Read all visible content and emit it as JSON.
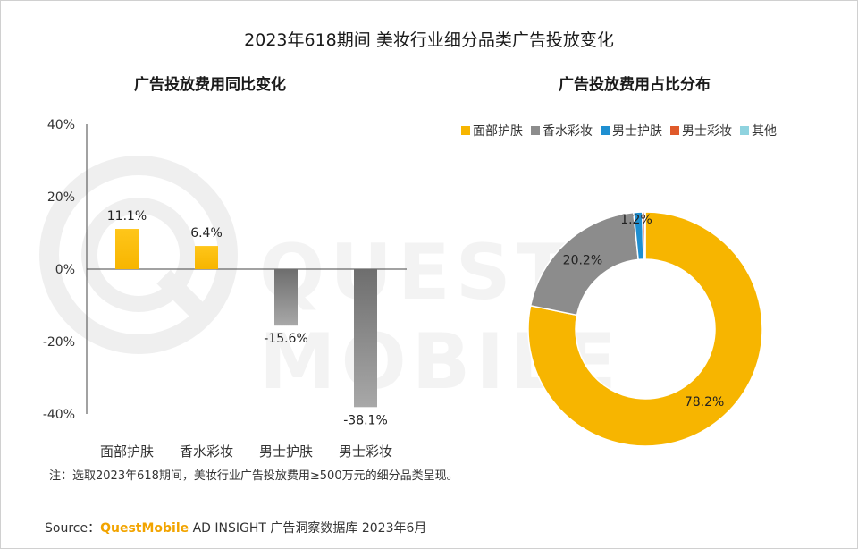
{
  "title": "2023年618期间 美妆行业细分品类广告投放变化",
  "note": "注：选取2023年618期间，美妆行业广告投放费用≥500万元的细分品类呈现。",
  "source": {
    "prefix": "Source：",
    "brand": "QuestMobile",
    "text": " AD INSIGHT 广告洞察数据库 2023年6月"
  },
  "watermark": "QUEST MOBILE",
  "chart_data": [
    {
      "type": "bar",
      "title": "广告投放费用同比变化",
      "categories": [
        "面部护肤",
        "香水彩妆",
        "男士护肤",
        "男士彩妆"
      ],
      "values": [
        11.1,
        6.4,
        -15.6,
        -38.1
      ],
      "value_labels": [
        "11.1%",
        "6.4%",
        "-15.6%",
        "-38.1%"
      ],
      "ylim": [
        -40,
        40
      ],
      "yticks": [
        40,
        20,
        0,
        -20,
        -40
      ],
      "ytick_labels": [
        "40%",
        "20%",
        "0%",
        "-20%",
        "-40%"
      ],
      "colors": {
        "positive": "#f7b500",
        "negative": "#8a8a8a"
      },
      "grid": false
    },
    {
      "type": "pie",
      "title": "广告投放费用占比分布",
      "donut": true,
      "legend_position": "top",
      "slices": [
        {
          "label": "面部护肤",
          "value": 78.2,
          "display": "78.2%",
          "color": "#f7b500"
        },
        {
          "label": "香水彩妆",
          "value": 20.2,
          "display": "20.2%",
          "color": "#8c8c8c"
        },
        {
          "label": "男士护肤",
          "value": 1.2,
          "display": "1.2%",
          "color": "#1f8fd1"
        },
        {
          "label": "男士彩妆",
          "value": 0.3,
          "display": "",
          "color": "#e05a2b"
        },
        {
          "label": "其他",
          "value": 0.1,
          "display": "",
          "color": "#8fd3df"
        }
      ]
    }
  ]
}
